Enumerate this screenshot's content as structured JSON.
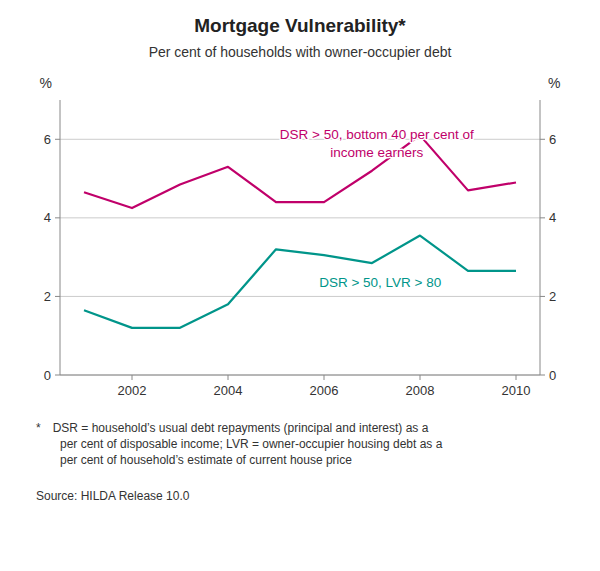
{
  "chart_data": {
    "type": "line",
    "title": "Mortgage Vulnerability*",
    "subtitle": "Per cent of households with owner-occupier debt",
    "y_label": "%",
    "y2_label": "%",
    "x": [
      2001,
      2002,
      2003,
      2004,
      2005,
      2006,
      2007,
      2008,
      2009,
      2010
    ],
    "series": [
      {
        "color": "#c0006a",
        "values": [
          4.65,
          4.25,
          4.85,
          5.3,
          4.4,
          4.4,
          5.2,
          6.1,
          4.7,
          4.9
        ]
      },
      {
        "color": "#00958a",
        "values": [
          1.65,
          1.2,
          1.2,
          1.8,
          3.2,
          3.05,
          2.85,
          3.55,
          2.65,
          2.65
        ]
      }
    ],
    "xlim": [
      2000.5,
      2010.5
    ],
    "xticks": [
      2002,
      2004,
      2006,
      2008,
      2010
    ],
    "ylim": [
      0,
      7
    ],
    "yticks": [
      0,
      2,
      4,
      6
    ],
    "y2lim": [
      0,
      7
    ],
    "y2ticks": [
      0,
      2,
      4,
      6
    ],
    "grid": true,
    "annotations": [
      {
        "text": "DSR > 50, bottom 40 per cent of\nincome earners",
        "x": 2007.1,
        "y": 5.45,
        "color": "#c0006a"
      },
      {
        "text": "DSR > 50, LVR > 80",
        "x": 2005.9,
        "y": 2.55,
        "color": "#00958a"
      }
    ],
    "footnote": "* DSR = household’s usual debt repayments (principal and interest) as a\n  per cent of disposable income; LVR = owner-occupier housing debt as a\n  per cent of household’s estimate of current house price",
    "source": "Source: HILDA Release 10.0"
  }
}
